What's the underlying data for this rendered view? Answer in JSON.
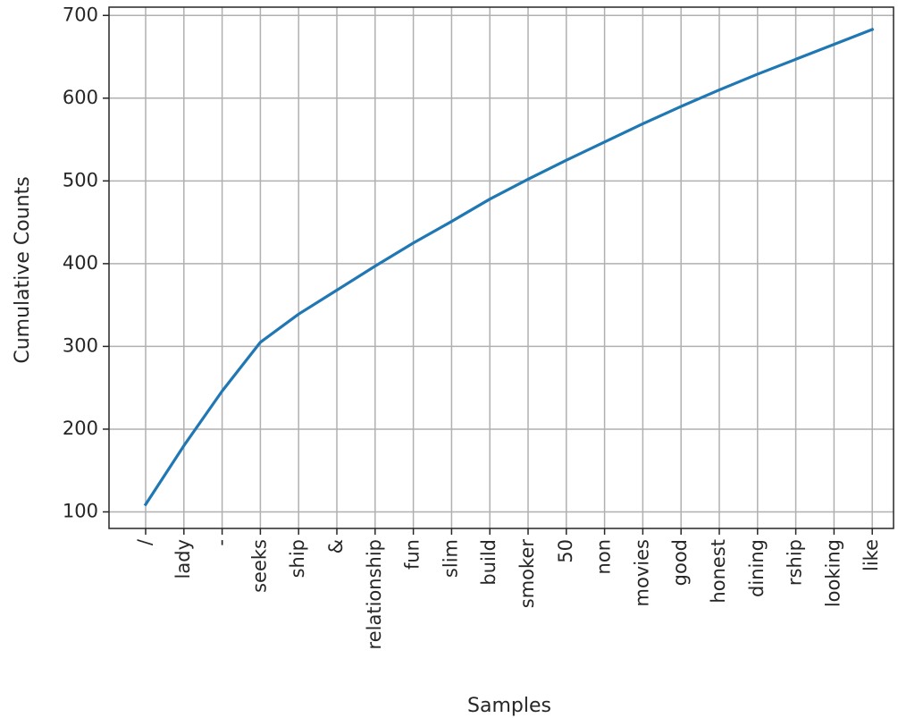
{
  "chart_data": {
    "type": "line",
    "title": "",
    "xlabel": "Samples",
    "ylabel": "Cumulative Counts",
    "categories": [
      "/",
      "lady",
      "-",
      "seeks",
      "ship",
      "&",
      "relationship",
      "fun",
      "slim",
      "build",
      "smoker",
      "50",
      "non",
      "movies",
      "good",
      "honest",
      "dining",
      "rship",
      "looking",
      "like"
    ],
    "series": [
      {
        "values": [
          109,
          180,
          246,
          305,
          339,
          368,
          397,
          425,
          451,
          478,
          502,
          525,
          547,
          569,
          590,
          610,
          629,
          647,
          665,
          683
        ],
        "color": "#1f77b4"
      }
    ],
    "ylim": [
      80,
      710
    ],
    "yticks": [
      100,
      200,
      300,
      400,
      500,
      600,
      700
    ],
    "grid": true,
    "x_tick_rotation": 90
  }
}
